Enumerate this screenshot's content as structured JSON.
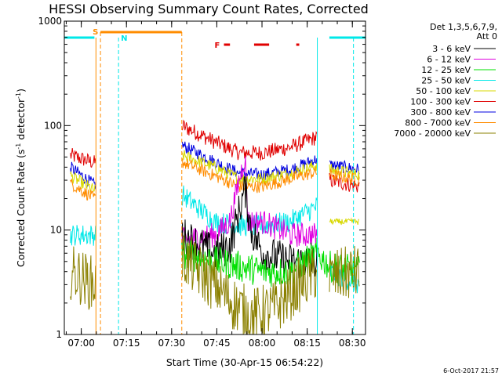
{
  "chart_data": {
    "type": "line",
    "title": "HESSI Observing Summary Count Rates, Corrected",
    "xlabel": "Start Time (30-Apr-15 06:54:22)",
    "ylabel_main": "Corrected Count Rate (s",
    "ylabel_sup1": "-1",
    "ylabel_mid": " detector",
    "ylabel_sup2": "-1",
    "ylabel_end": ")",
    "x_unit": "minutes after 06:54:22",
    "xlim": [
      0,
      100
    ],
    "ylim": [
      1,
      1000
    ],
    "yscale": "log",
    "x_tick_labels": [
      "07:00",
      "07:15",
      "07:30",
      "07:45",
      "08:00",
      "08:15",
      "08:30"
    ],
    "x_tick_values": [
      5.63,
      20.63,
      35.63,
      50.63,
      65.63,
      80.63,
      95.63
    ],
    "y_tick_labels": [
      "1",
      "10",
      "100",
      "1000"
    ],
    "y_tick_values": [
      1,
      10,
      100,
      1000
    ],
    "gaps": [
      [
        10.5,
        39.0
      ],
      [
        84.0,
        88.0
      ]
    ],
    "legend": {
      "header_line1": "Det 1,3,5,6,7,9,",
      "header_line2": "Att 0",
      "entries": [
        {
          "label": "3 - 6 keV",
          "color": "#000000"
        },
        {
          "label": "6 - 12 keV",
          "color": "#e000e0"
        },
        {
          "label": "12 - 25 keV",
          "color": "#00e000"
        },
        {
          "label": "25 - 50 keV",
          "color": "#00e8e8"
        },
        {
          "label": "50 - 100 keV",
          "color": "#d8d800"
        },
        {
          "label": "100 - 300 keV",
          "color": "#e00000"
        },
        {
          "label": "300 - 800 keV",
          "color": "#0000e0"
        },
        {
          "label": "800 - 7000 keV",
          "color": "#ff8c00"
        },
        {
          "label": "7000 - 20000 keV",
          "color": "#8b8000"
        }
      ]
    },
    "series": [
      {
        "band": "100 - 300 keV",
        "color": "#e00000",
        "noise": 0.025,
        "points": [
          [
            2,
            52
          ],
          [
            10,
            44
          ],
          [
            39,
            100
          ],
          [
            50,
            70
          ],
          [
            58,
            55
          ],
          [
            66,
            55
          ],
          [
            75,
            62
          ],
          [
            84,
            78
          ],
          [
            88,
            30
          ],
          [
            98,
            26
          ]
        ]
      },
      {
        "band": "300 - 800 keV",
        "color": "#0000e0",
        "noise": 0.02,
        "points": [
          [
            2,
            40
          ],
          [
            10,
            27
          ],
          [
            39,
            65
          ],
          [
            50,
            45
          ],
          [
            58,
            35
          ],
          [
            66,
            34
          ],
          [
            75,
            38
          ],
          [
            84,
            48
          ],
          [
            88,
            42
          ],
          [
            98,
            38
          ]
        ]
      },
      {
        "band": "50 - 100 keV",
        "color": "#d8d800",
        "noise": 0.02,
        "points": [
          [
            2,
            33
          ],
          [
            10,
            24
          ],
          [
            39,
            52
          ],
          [
            50,
            40
          ],
          [
            58,
            31
          ],
          [
            66,
            31
          ],
          [
            75,
            35
          ],
          [
            84,
            42
          ],
          [
            88,
            38
          ],
          [
            98,
            34
          ]
        ]
      },
      {
        "band": "800 - 7000 keV",
        "color": "#ff8c00",
        "noise": 0.02,
        "points": [
          [
            2,
            28
          ],
          [
            10,
            20
          ],
          [
            39,
            45
          ],
          [
            50,
            33
          ],
          [
            58,
            26
          ],
          [
            66,
            26
          ],
          [
            75,
            31
          ],
          [
            84,
            36
          ],
          [
            88,
            34
          ],
          [
            98,
            30
          ]
        ]
      },
      {
        "band": "25 - 50 keV",
        "color": "#00e8e8",
        "noise": 0.035,
        "points": [
          [
            2,
            9
          ],
          [
            10,
            9
          ],
          [
            39,
            22
          ],
          [
            50,
            12
          ],
          [
            58,
            11
          ],
          [
            66,
            11
          ],
          [
            75,
            12
          ],
          [
            84,
            17
          ],
          [
            88,
            4
          ],
          [
            98,
            3
          ]
        ]
      },
      {
        "band": "6 - 12 keV",
        "color": "#e000e0",
        "noise": 0.04,
        "points": [
          [
            39,
            8
          ],
          [
            50,
            9
          ],
          [
            55,
            12
          ],
          [
            58,
            30
          ],
          [
            60,
            50
          ],
          [
            61,
            12
          ],
          [
            64,
            12
          ],
          [
            66,
            12
          ],
          [
            75,
            9
          ],
          [
            84,
            9
          ]
        ]
      },
      {
        "band": "3 - 6 keV",
        "color": "#000000",
        "noise": 0.06,
        "points": [
          [
            39,
            9
          ],
          [
            50,
            6
          ],
          [
            55,
            7
          ],
          [
            58,
            15
          ],
          [
            60,
            25
          ],
          [
            62,
            10
          ],
          [
            66,
            6
          ],
          [
            75,
            5
          ],
          [
            84,
            5
          ]
        ]
      },
      {
        "band": "12 - 25 keV",
        "color": "#00e000",
        "noise": 0.05,
        "points": [
          [
            39,
            6
          ],
          [
            50,
            5
          ],
          [
            58,
            4.5
          ],
          [
            66,
            4
          ],
          [
            75,
            4
          ],
          [
            84,
            6
          ],
          [
            88,
            4.5
          ],
          [
            98,
            4
          ]
        ]
      },
      {
        "band": "7000 - 20000 keV",
        "color": "#8b8000",
        "noise": 0.09,
        "points": [
          [
            2,
            4
          ],
          [
            10,
            3
          ],
          [
            39,
            5.5
          ],
          [
            50,
            3
          ],
          [
            56,
            2
          ],
          [
            62,
            1.5
          ],
          [
            70,
            1.8
          ],
          [
            78,
            3
          ],
          [
            84,
            4
          ],
          [
            88,
            3.5
          ],
          [
            98,
            4
          ]
        ]
      },
      {
        "band": "50 - 100 keV",
        "color": "#d8d800",
        "noise": 0.01,
        "points": [
          [
            88,
            12
          ],
          [
            98,
            12
          ]
        ]
      }
    ],
    "markers": {
      "saa_label": "S",
      "night_label": "N",
      "flare_label": "F",
      "saa_interval": [
        12,
        39
      ],
      "night_lines": [
        18,
        96
      ],
      "day_segments": [
        [
          0,
          10
        ],
        [
          88,
          100
        ]
      ],
      "flare_segments": [
        [
          53,
          55
        ],
        [
          63,
          68
        ],
        [
          77,
          78
        ]
      ]
    }
  },
  "timestamp": "6-Oct-2017 21:57"
}
